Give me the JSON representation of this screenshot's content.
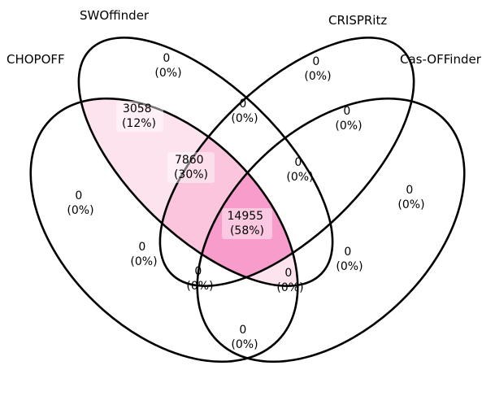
{
  "sets": [
    {
      "id": "chopoff",
      "label": "CHOPOFF"
    },
    {
      "id": "swoffinder",
      "label": "SWOffinder"
    },
    {
      "id": "crispritz",
      "label": "CRISPRitz"
    },
    {
      "id": "casoffinder",
      "label": "Cas-OFFinder"
    }
  ],
  "regions": {
    "a_only": {
      "count": "0",
      "pct": "(0%)"
    },
    "b_only": {
      "count": "0",
      "pct": "(0%)"
    },
    "c_only": {
      "count": "0",
      "pct": "(0%)"
    },
    "d_only": {
      "count": "0",
      "pct": "(0%)"
    },
    "ab": {
      "count": "3058",
      "pct": "(12%)"
    },
    "bc": {
      "count": "0",
      "pct": "(0%)"
    },
    "cd": {
      "count": "0",
      "pct": "(0%)"
    },
    "abc": {
      "count": "7860",
      "pct": "(30%)"
    },
    "bcd": {
      "count": "0",
      "pct": "(0%)"
    },
    "abcd": {
      "count": "14955",
      "pct": "(58%)"
    },
    "ac": {
      "count": "0",
      "pct": "(0%)"
    },
    "bd": {
      "count": "0",
      "pct": "(0%)"
    },
    "acd": {
      "count": "0",
      "pct": "(0%)"
    },
    "abd": {
      "count": "0",
      "pct": "(0%)"
    },
    "ad": {
      "count": "0",
      "pct": "(0%)"
    }
  },
  "colors": {
    "ab": "#fde3ee",
    "abc": "#fbc5dd",
    "abcd": "#f79ccb",
    "outline": "#000000"
  }
}
